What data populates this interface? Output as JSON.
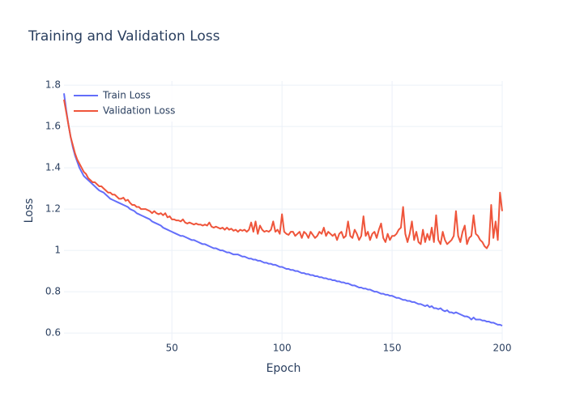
{
  "chart_data": {
    "type": "line",
    "title": "Training and Validation Loss",
    "x_label": "Epoch",
    "y_label": "Loss",
    "x": [
      1,
      2,
      3,
      4,
      5,
      6,
      7,
      8,
      9,
      10,
      11,
      12,
      13,
      14,
      15,
      16,
      17,
      18,
      19,
      20,
      21,
      22,
      23,
      24,
      25,
      26,
      27,
      28,
      29,
      30,
      31,
      32,
      33,
      34,
      35,
      36,
      37,
      38,
      39,
      40,
      41,
      42,
      43,
      44,
      45,
      46,
      47,
      48,
      49,
      50,
      51,
      52,
      53,
      54,
      55,
      56,
      57,
      58,
      59,
      60,
      61,
      62,
      63,
      64,
      65,
      66,
      67,
      68,
      69,
      70,
      71,
      72,
      73,
      74,
      75,
      76,
      77,
      78,
      79,
      80,
      81,
      82,
      83,
      84,
      85,
      86,
      87,
      88,
      89,
      90,
      91,
      92,
      93,
      94,
      95,
      96,
      97,
      98,
      99,
      100,
      101,
      102,
      103,
      104,
      105,
      106,
      107,
      108,
      109,
      110,
      111,
      112,
      113,
      114,
      115,
      116,
      117,
      118,
      119,
      120,
      121,
      122,
      123,
      124,
      125,
      126,
      127,
      128,
      129,
      130,
      131,
      132,
      133,
      134,
      135,
      136,
      137,
      138,
      139,
      140,
      141,
      142,
      143,
      144,
      145,
      146,
      147,
      148,
      149,
      150,
      151,
      152,
      153,
      154,
      155,
      156,
      157,
      158,
      159,
      160,
      161,
      162,
      163,
      164,
      165,
      166,
      167,
      168,
      169,
      170,
      171,
      172,
      173,
      174,
      175,
      176,
      177,
      178,
      179,
      180,
      181,
      182,
      183,
      184,
      185,
      186,
      187,
      188,
      189,
      190,
      191,
      192,
      193,
      194,
      195,
      196,
      197,
      198,
      199,
      200
    ],
    "series": [
      {
        "name": "Train Loss",
        "color": "#636efa",
        "values": [
          1.76,
          1.68,
          1.61,
          1.55,
          1.5,
          1.46,
          1.43,
          1.4,
          1.38,
          1.36,
          1.35,
          1.34,
          1.33,
          1.32,
          1.31,
          1.3,
          1.29,
          1.285,
          1.28,
          1.27,
          1.26,
          1.25,
          1.245,
          1.24,
          1.235,
          1.23,
          1.225,
          1.22,
          1.215,
          1.21,
          1.2,
          1.195,
          1.19,
          1.18,
          1.175,
          1.17,
          1.165,
          1.16,
          1.155,
          1.15,
          1.14,
          1.135,
          1.13,
          1.125,
          1.12,
          1.11,
          1.105,
          1.1,
          1.095,
          1.09,
          1.085,
          1.08,
          1.075,
          1.07,
          1.07,
          1.065,
          1.06,
          1.055,
          1.05,
          1.05,
          1.045,
          1.04,
          1.035,
          1.03,
          1.03,
          1.025,
          1.02,
          1.015,
          1.01,
          1.01,
          1.005,
          1.0,
          1.0,
          0.995,
          0.99,
          0.99,
          0.985,
          0.98,
          0.98,
          0.98,
          0.975,
          0.97,
          0.97,
          0.965,
          0.96,
          0.96,
          0.955,
          0.955,
          0.95,
          0.95,
          0.945,
          0.94,
          0.94,
          0.935,
          0.935,
          0.93,
          0.93,
          0.925,
          0.92,
          0.92,
          0.915,
          0.91,
          0.91,
          0.905,
          0.905,
          0.9,
          0.9,
          0.895,
          0.89,
          0.89,
          0.885,
          0.885,
          0.88,
          0.88,
          0.875,
          0.875,
          0.87,
          0.87,
          0.865,
          0.865,
          0.86,
          0.86,
          0.855,
          0.855,
          0.85,
          0.85,
          0.845,
          0.845,
          0.84,
          0.84,
          0.835,
          0.83,
          0.83,
          0.825,
          0.82,
          0.82,
          0.815,
          0.815,
          0.81,
          0.81,
          0.805,
          0.8,
          0.8,
          0.795,
          0.79,
          0.79,
          0.785,
          0.785,
          0.78,
          0.78,
          0.775,
          0.77,
          0.77,
          0.765,
          0.76,
          0.76,
          0.755,
          0.755,
          0.75,
          0.75,
          0.745,
          0.74,
          0.74,
          0.735,
          0.73,
          0.735,
          0.725,
          0.73,
          0.72,
          0.72,
          0.715,
          0.72,
          0.71,
          0.705,
          0.71,
          0.7,
          0.7,
          0.695,
          0.7,
          0.695,
          0.69,
          0.685,
          0.68,
          0.68,
          0.675,
          0.665,
          0.675,
          0.665,
          0.665,
          0.665,
          0.66,
          0.66,
          0.655,
          0.655,
          0.65,
          0.65,
          0.645,
          0.64,
          0.64,
          0.635
        ]
      },
      {
        "name": "Validation Loss",
        "color": "#ef553b",
        "values": [
          1.73,
          1.67,
          1.61,
          1.55,
          1.51,
          1.47,
          1.44,
          1.42,
          1.4,
          1.38,
          1.37,
          1.35,
          1.34,
          1.33,
          1.33,
          1.32,
          1.31,
          1.31,
          1.3,
          1.29,
          1.28,
          1.28,
          1.27,
          1.27,
          1.26,
          1.25,
          1.25,
          1.255,
          1.24,
          1.245,
          1.23,
          1.22,
          1.22,
          1.21,
          1.21,
          1.2,
          1.2,
          1.2,
          1.195,
          1.19,
          1.18,
          1.19,
          1.18,
          1.175,
          1.18,
          1.17,
          1.18,
          1.16,
          1.165,
          1.15,
          1.15,
          1.145,
          1.145,
          1.14,
          1.15,
          1.135,
          1.13,
          1.135,
          1.13,
          1.125,
          1.13,
          1.125,
          1.125,
          1.12,
          1.125,
          1.12,
          1.135,
          1.115,
          1.11,
          1.115,
          1.11,
          1.105,
          1.11,
          1.1,
          1.11,
          1.1,
          1.105,
          1.095,
          1.1,
          1.09,
          1.1,
          1.095,
          1.1,
          1.09,
          1.1,
          1.135,
          1.09,
          1.14,
          1.08,
          1.12,
          1.1,
          1.09,
          1.095,
          1.09,
          1.1,
          1.14,
          1.09,
          1.1,
          1.08,
          1.175,
          1.09,
          1.08,
          1.075,
          1.09,
          1.09,
          1.07,
          1.08,
          1.09,
          1.06,
          1.09,
          1.08,
          1.06,
          1.09,
          1.075,
          1.06,
          1.07,
          1.09,
          1.08,
          1.11,
          1.07,
          1.09,
          1.08,
          1.07,
          1.08,
          1.05,
          1.08,
          1.09,
          1.06,
          1.07,
          1.14,
          1.07,
          1.06,
          1.1,
          1.08,
          1.05,
          1.07,
          1.165,
          1.07,
          1.09,
          1.05,
          1.08,
          1.09,
          1.06,
          1.1,
          1.13,
          1.06,
          1.04,
          1.08,
          1.05,
          1.07,
          1.07,
          1.08,
          1.1,
          1.11,
          1.21,
          1.08,
          1.04,
          1.08,
          1.14,
          1.05,
          1.09,
          1.04,
          1.03,
          1.1,
          1.04,
          1.08,
          1.05,
          1.11,
          1.04,
          1.17,
          1.05,
          1.03,
          1.09,
          1.05,
          1.03,
          1.04,
          1.05,
          1.07,
          1.19,
          1.07,
          1.04,
          1.09,
          1.12,
          1.03,
          1.06,
          1.07,
          1.17,
          1.08,
          1.07,
          1.05,
          1.04,
          1.02,
          1.01,
          1.03,
          1.22,
          1.06,
          1.14,
          1.05,
          1.28,
          1.19
        ]
      }
    ],
    "xlim": [
      1,
      200
    ],
    "xticks": [
      50,
      100,
      150,
      200
    ],
    "ylim": [
      0.565,
      1.82
    ],
    "yticks": [
      0.6,
      0.8,
      1,
      1.2,
      1.4,
      1.6,
      1.8
    ],
    "grid": true,
    "legend": "top-left"
  }
}
